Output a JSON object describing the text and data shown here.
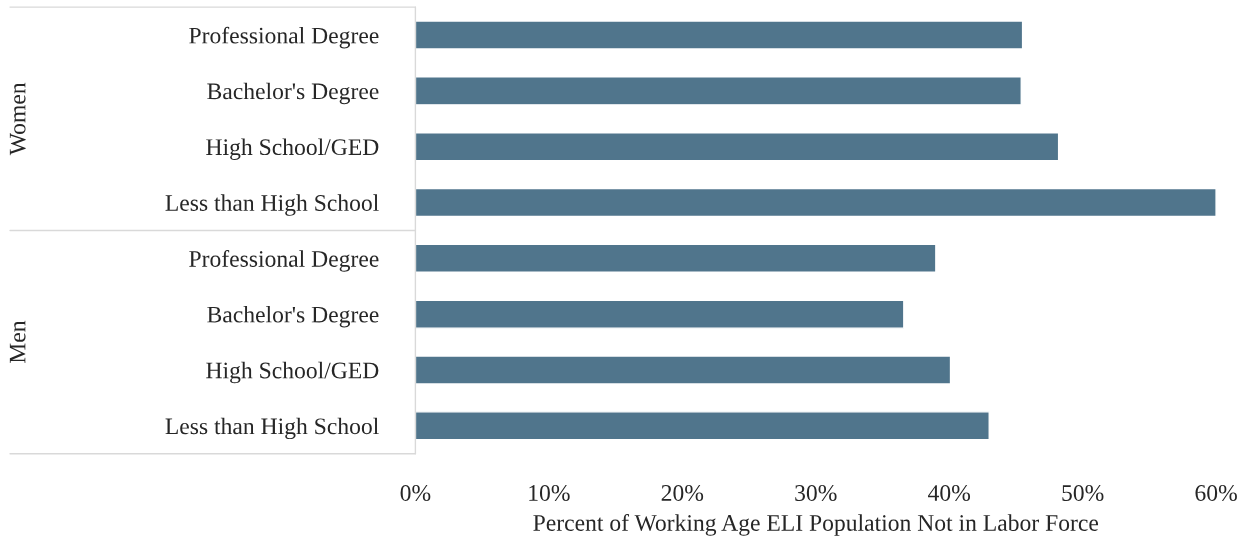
{
  "chart_data": {
    "type": "bar",
    "orientation": "horizontal",
    "xlabel": "Percent of Working Age ELI Population Not in Labor Force",
    "categories": [
      "Professional Degree",
      "Bachelor's Degree",
      "High School/GED",
      "Less than High School",
      "Professional Degree",
      "Bachelor's Degree",
      "High School/GED",
      "Less than High School"
    ],
    "values": [
      45.5,
      45.4,
      48.2,
      60.0,
      39.0,
      36.6,
      40.1,
      43.0
    ],
    "color": "#50758c",
    "annotations": [
      "Women",
      "Men"
    ],
    "xlim": [
      0,
      60
    ],
    "xticks": [
      {
        "value": 0,
        "label": "0%"
      },
      {
        "value": 10,
        "label": "10%"
      },
      {
        "value": 20,
        "label": "20%"
      },
      {
        "value": 30,
        "label": "30%"
      },
      {
        "value": 40,
        "label": "40%"
      },
      {
        "value": 50,
        "label": "50%"
      },
      {
        "value": 60,
        "label": "60%"
      }
    ],
    "grid": false,
    "legend": false
  }
}
